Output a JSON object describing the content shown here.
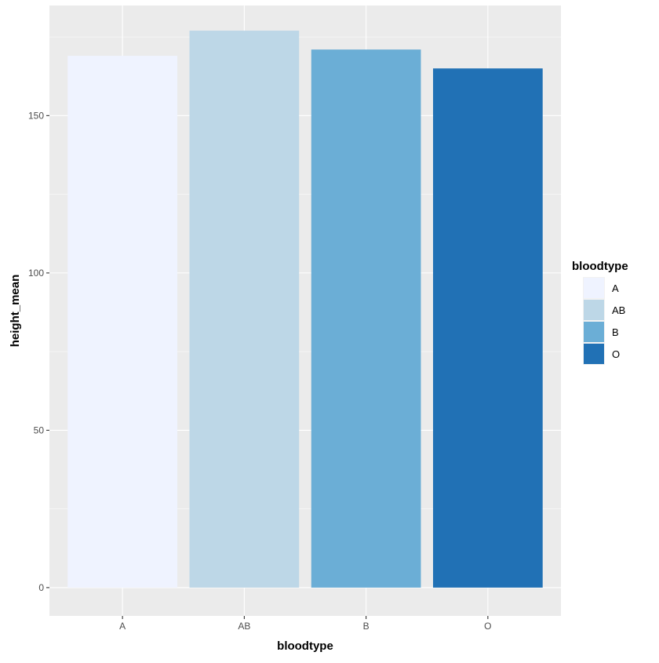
{
  "chart_data": {
    "type": "bar",
    "categories": [
      "A",
      "AB",
      "B",
      "O"
    ],
    "values": [
      169,
      177,
      171,
      165
    ],
    "xlabel": "bloodtype",
    "ylabel": "height_mean",
    "ylim": [
      -9,
      185
    ],
    "yticks": [
      0,
      50,
      100,
      150
    ],
    "y_minor_ticks": [
      25,
      75,
      125,
      175
    ],
    "grid": true,
    "legend": {
      "title": "bloodtype",
      "placement": "right",
      "entries": [
        "A",
        "AB",
        "B",
        "O"
      ]
    },
    "colors": {
      "A": "#EFF3FF",
      "AB": "#BDD7E7",
      "B": "#6BAED6",
      "O": "#2171B5"
    },
    "panel_background": "#EBEBEB",
    "grid_color": "#FFFFFF"
  }
}
